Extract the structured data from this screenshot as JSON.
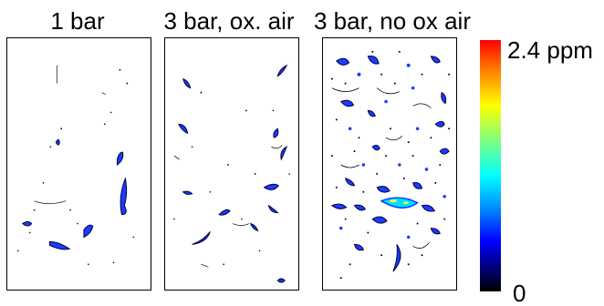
{
  "panels": [
    {
      "title": "1 bar",
      "density": "low"
    },
    {
      "title": "3 bar, ox. air",
      "density": "medium"
    },
    {
      "title": "3 bar, no ox air",
      "density": "high"
    }
  ],
  "colorbar": {
    "max_label": "2.4 ppm",
    "min_label": "0",
    "colormap": "jet",
    "colors": [
      "#ff0000",
      "#ff7f00",
      "#ffff00",
      "#7fff7f",
      "#00ffff",
      "#0080ff",
      "#0000ff",
      "#000080",
      "#000000"
    ]
  }
}
